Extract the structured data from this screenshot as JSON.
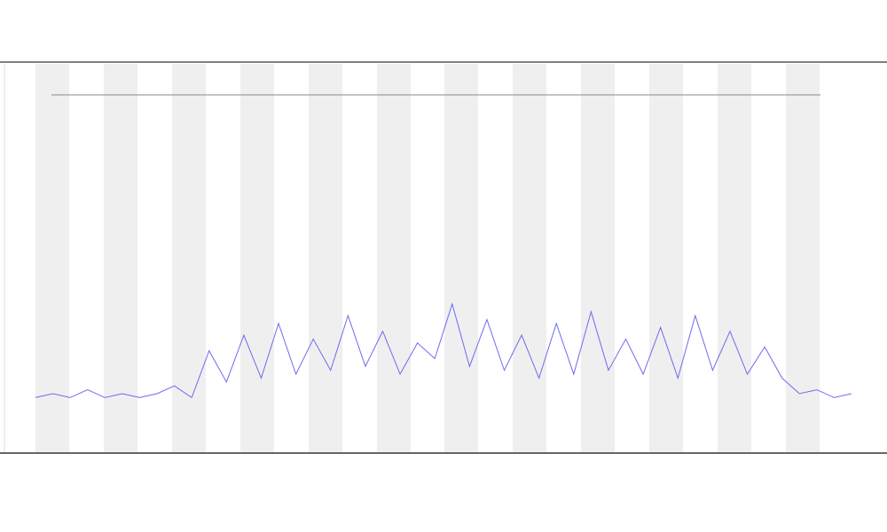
{
  "chart_data": {
    "type": "line",
    "x": [
      0,
      1,
      2,
      3,
      4,
      5,
      6,
      7,
      8,
      9,
      10,
      11,
      12,
      13,
      14,
      15,
      16,
      17,
      18,
      19,
      20,
      21,
      22,
      23,
      24,
      25,
      26,
      27,
      28,
      29,
      30,
      31,
      32,
      33,
      34,
      35,
      36,
      37,
      38,
      39,
      40,
      41,
      42,
      43,
      44,
      45,
      46,
      47
    ],
    "xlim": [
      0,
      47
    ],
    "ylim": [
      0,
      100
    ],
    "series": [
      {
        "color": "#6b6bf0",
        "values": [
          14,
          15,
          14,
          16,
          14,
          15,
          14,
          15,
          17,
          14,
          26,
          18,
          30,
          19,
          33,
          20,
          29,
          21,
          35,
          22,
          31,
          20,
          28,
          24,
          38,
          22,
          34,
          21,
          30,
          19,
          33,
          20,
          36,
          21,
          29,
          20,
          32,
          19,
          35,
          21,
          31,
          20,
          27,
          19,
          15,
          16,
          14,
          15
        ]
      }
    ]
  }
}
